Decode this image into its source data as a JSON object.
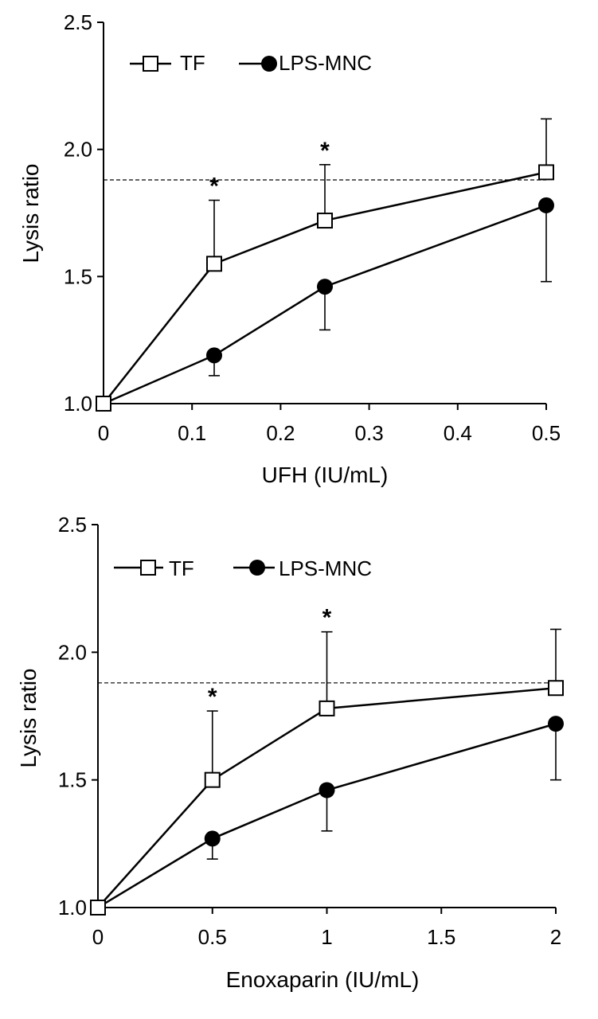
{
  "chart_data": [
    {
      "type": "line",
      "xlabel": "UFH (IU/mL)",
      "ylabel": "Lysis ratio",
      "xlim": [
        0,
        0.5
      ],
      "ylim": [
        1.0,
        2.5
      ],
      "xticks": [
        0,
        0.1,
        0.2,
        0.3,
        0.4,
        0.5
      ],
      "xtick_labels": [
        "0",
        "0.1",
        "0.2",
        "0.3",
        "0.4",
        "0.5"
      ],
      "yticks": [
        1.0,
        1.5,
        2.0,
        2.5
      ],
      "ytick_labels": [
        "1.0",
        "1.5",
        "2.0",
        "2.5"
      ],
      "reference_line": 1.88,
      "legend": [
        "TF",
        "LPS-MNC"
      ],
      "series": [
        {
          "name": "TF",
          "marker": "open-square",
          "x": [
            0,
            0.125,
            0.25,
            0.5
          ],
          "y": [
            1.0,
            1.55,
            1.72,
            1.91
          ],
          "err_upper": [
            null,
            1.8,
            1.94,
            2.12
          ]
        },
        {
          "name": "LPS-MNC",
          "marker": "filled-circle",
          "x": [
            0,
            0.125,
            0.25,
            0.5
          ],
          "y": [
            1.0,
            1.19,
            1.46,
            1.78
          ],
          "err_lower": [
            null,
            1.11,
            1.29,
            1.48
          ]
        }
      ],
      "annotations": [
        {
          "text": "*",
          "x": 0.125,
          "y": 1.8
        },
        {
          "text": "*",
          "x": 0.25,
          "y": 1.94
        }
      ]
    },
    {
      "type": "line",
      "xlabel": "Enoxaparin (IU/mL)",
      "ylabel": "Lysis ratio",
      "xlim": [
        0,
        2
      ],
      "ylim": [
        1.0,
        2.5
      ],
      "xticks": [
        0,
        0.5,
        1,
        1.5,
        2
      ],
      "xtick_labels": [
        "0",
        "0.5",
        "1",
        "1.5",
        "2"
      ],
      "yticks": [
        1.0,
        1.5,
        2.0,
        2.5
      ],
      "ytick_labels": [
        "1.0",
        "1.5",
        "2.0",
        "2.5"
      ],
      "reference_line": 1.88,
      "legend": [
        "TF",
        "LPS-MNC"
      ],
      "series": [
        {
          "name": "TF",
          "marker": "open-square",
          "x": [
            0,
            0.5,
            1,
            2
          ],
          "y": [
            1.0,
            1.5,
            1.78,
            1.86
          ],
          "err_upper": [
            null,
            1.77,
            2.08,
            2.09
          ]
        },
        {
          "name": "LPS-MNC",
          "marker": "filled-circle",
          "x": [
            0,
            0.5,
            1,
            2
          ],
          "y": [
            1.0,
            1.27,
            1.46,
            1.72
          ],
          "err_lower": [
            null,
            1.19,
            1.3,
            1.5
          ]
        }
      ],
      "annotations": [
        {
          "text": "*",
          "x": 0.5,
          "y": 1.77
        },
        {
          "text": "*",
          "x": 1,
          "y": 2.08
        }
      ]
    }
  ]
}
